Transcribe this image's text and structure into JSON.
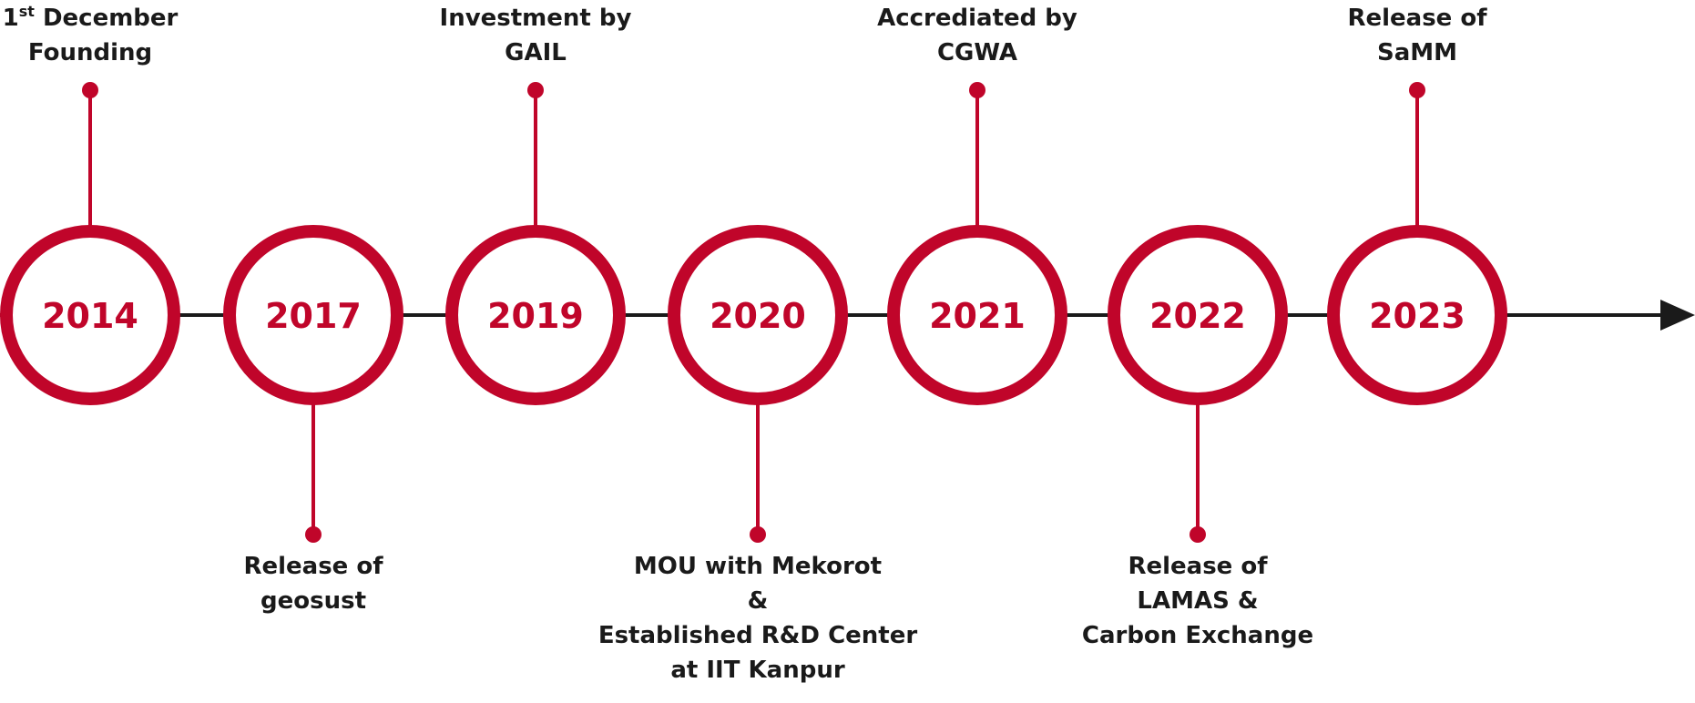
{
  "colors": {
    "accent": "#c0052a",
    "axis": "#1a1a1a",
    "text": "#1a1a1a",
    "background": "#ffffff"
  },
  "events": [
    {
      "year": "2014",
      "position": "top",
      "label_lines": [
        "1st December",
        "Founding"
      ],
      "superscript": {
        "line": 0,
        "base": "1",
        "sup": "st",
        "rest": " December"
      }
    },
    {
      "year": "2017",
      "position": "bottom",
      "label_lines": [
        "Release of",
        "geosust"
      ]
    },
    {
      "year": "2019",
      "position": "top",
      "label_lines": [
        "Investment by",
        "GAIL"
      ]
    },
    {
      "year": "2020",
      "position": "bottom",
      "label_lines": [
        "MOU with Mekorot",
        "&",
        "Established R&D Center",
        "at IIT Kanpur"
      ]
    },
    {
      "year": "2021",
      "position": "top",
      "label_lines": [
        "Accrediated by",
        "CGWA"
      ]
    },
    {
      "year": "2022",
      "position": "bottom",
      "label_lines": [
        "Release of",
        "LAMAS &",
        "Carbon Exchange"
      ]
    },
    {
      "year": "2023",
      "position": "top",
      "label_lines": [
        "Release of",
        "SaMM"
      ]
    }
  ]
}
